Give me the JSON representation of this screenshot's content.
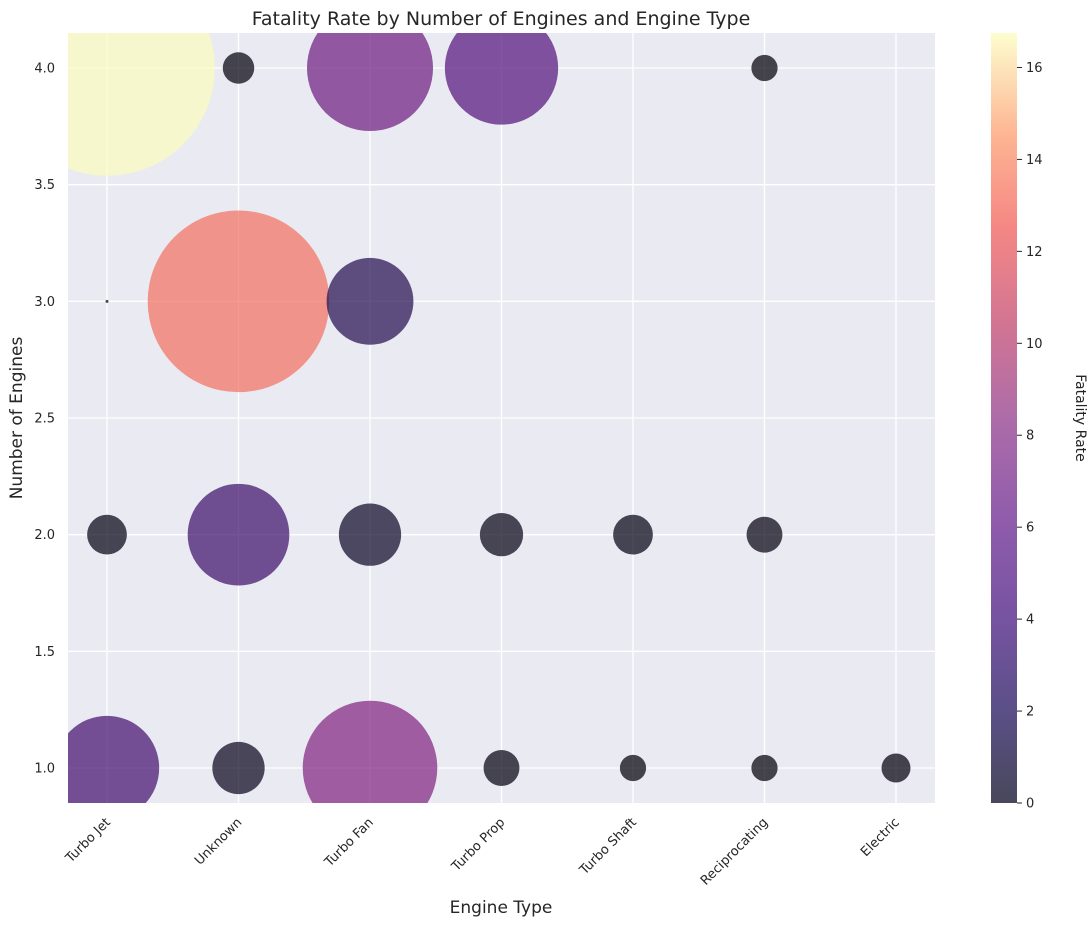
{
  "chart_data": {
    "type": "scatter",
    "title": "Fatality Rate by Number of Engines and Engine Type",
    "xlabel": "Engine Type",
    "ylabel": "Number of Engines",
    "categories": [
      "Turbo Jet",
      "Unknown",
      "Turbo Fan",
      "Turbo Prop",
      "Turbo Shaft",
      "Reciprocating",
      "Electric"
    ],
    "yticks": [
      "1.0",
      "1.5",
      "2.0",
      "2.5",
      "3.0",
      "3.5",
      "4.0"
    ],
    "ylim": [
      0.85,
      4.15
    ],
    "grid": true,
    "colorbar": {
      "label": "Fatality Rate",
      "ticks": [
        "0",
        "2",
        "4",
        "6",
        "8",
        "10",
        "12",
        "14",
        "16"
      ],
      "range": [
        0,
        16.75
      ],
      "colormap": "magma"
    },
    "points": [
      {
        "x": "Turbo Jet",
        "y": 4,
        "rate": 16.7
      },
      {
        "x": "Turbo Jet",
        "y": 3,
        "rate": 0.0
      },
      {
        "x": "Turbo Jet",
        "y": 2,
        "rate": 0.5
      },
      {
        "x": "Turbo Jet",
        "y": 1,
        "rate": 3.8
      },
      {
        "x": "Unknown",
        "y": 4,
        "rate": 0.3
      },
      {
        "x": "Unknown",
        "y": 3,
        "rate": 11.8
      },
      {
        "x": "Unknown",
        "y": 2,
        "rate": 3.6
      },
      {
        "x": "Unknown",
        "y": 1,
        "rate": 0.9
      },
      {
        "x": "Turbo Fan",
        "y": 4,
        "rate": 5.6
      },
      {
        "x": "Turbo Fan",
        "y": 3,
        "rate": 2.6
      },
      {
        "x": "Turbo Fan",
        "y": 2,
        "rate": 1.3
      },
      {
        "x": "Turbo Fan",
        "y": 1,
        "rate": 6.4
      },
      {
        "x": "Turbo Prop",
        "y": 4,
        "rate": 4.5
      },
      {
        "x": "Turbo Prop",
        "y": 2,
        "rate": 0.6
      },
      {
        "x": "Turbo Prop",
        "y": 1,
        "rate": 0.4
      },
      {
        "x": "Turbo Shaft",
        "y": 2,
        "rate": 0.5
      },
      {
        "x": "Turbo Shaft",
        "y": 1,
        "rate": 0.2
      },
      {
        "x": "Reciprocating",
        "y": 4,
        "rate": 0.2
      },
      {
        "x": "Reciprocating",
        "y": 2,
        "rate": 0.4
      },
      {
        "x": "Reciprocating",
        "y": 1,
        "rate": 0.2
      },
      {
        "x": "Electric",
        "y": 1,
        "rate": 0.25
      }
    ]
  }
}
